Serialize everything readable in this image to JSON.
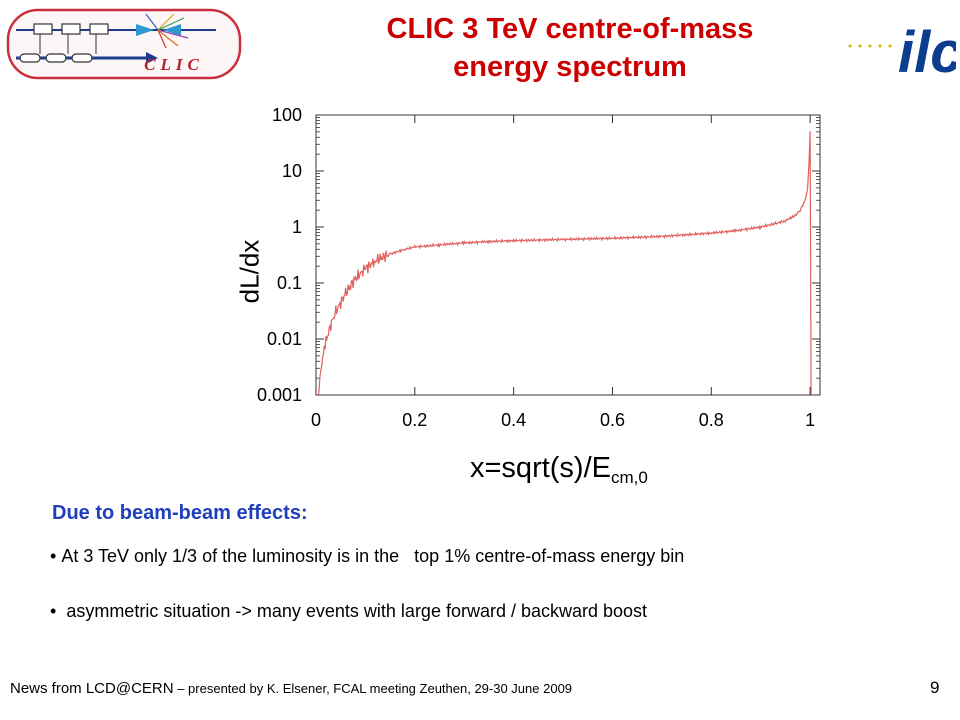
{
  "slide": {
    "title_line1": "CLIC 3 TeV centre-of-mass",
    "title_line2": "energy spectrum",
    "section_heading": "Due to beam-beam effects:",
    "bullets": [
      "At 3 TeV only 1/3 of the luminosity is in the   top 1% centre-of-mass energy bin",
      "asymmetric situation -> many events with large forward / backward boost"
    ],
    "footer_main": "News from LCD@CERN",
    "footer_detail": " – presented by K. Elsener, FCAL meeting Zeuthen, 29-30 June 2009",
    "page_number": "9",
    "logos": {
      "left": "CLIC",
      "right": "ilc"
    },
    "colors": {
      "title": "#cc0000",
      "heading": "#1f3fbf",
      "curve": "#e06060",
      "clic_text": "#b8202a",
      "ilc_blue": "#0c3d8f",
      "ilc_dots": "#d4b000"
    }
  },
  "chart_data": {
    "type": "line",
    "xlabel": "x=sqrt(s)/E",
    "xlabel_sub": "cm,0",
    "ylabel": "dL/dx",
    "xlim": [
      0,
      1.02
    ],
    "ylim": [
      0.001,
      100
    ],
    "yscale": "log",
    "grid": false,
    "xticks": [
      0,
      0.2,
      0.4,
      0.6,
      0.8,
      1
    ],
    "xtick_labels": [
      "0",
      "0.2",
      "0.4",
      "0.6",
      "0.8",
      "1"
    ],
    "yticks": [
      0.001,
      0.01,
      0.1,
      1,
      10,
      100
    ],
    "ytick_labels": [
      "0.001",
      "0.01",
      "0.1",
      "1",
      "10",
      "100"
    ],
    "series": [
      {
        "color": "#e06060",
        "x": [
          0.005,
          0.008,
          0.012,
          0.02,
          0.03,
          0.04,
          0.05,
          0.06,
          0.07,
          0.08,
          0.1,
          0.12,
          0.15,
          0.18,
          0.2,
          0.25,
          0.3,
          0.35,
          0.4,
          0.5,
          0.6,
          0.7,
          0.8,
          0.85,
          0.9,
          0.93,
          0.95,
          0.97,
          0.98,
          0.99,
          0.995,
          0.998,
          1.0,
          1.002
        ],
        "y": [
          0.001,
          0.002,
          0.004,
          0.009,
          0.018,
          0.03,
          0.045,
          0.065,
          0.09,
          0.12,
          0.18,
          0.25,
          0.33,
          0.4,
          0.44,
          0.48,
          0.52,
          0.55,
          0.57,
          0.6,
          0.63,
          0.68,
          0.78,
          0.86,
          1.0,
          1.15,
          1.3,
          1.6,
          2.0,
          3.0,
          5.0,
          15,
          50,
          0.001
        ]
      }
    ]
  }
}
